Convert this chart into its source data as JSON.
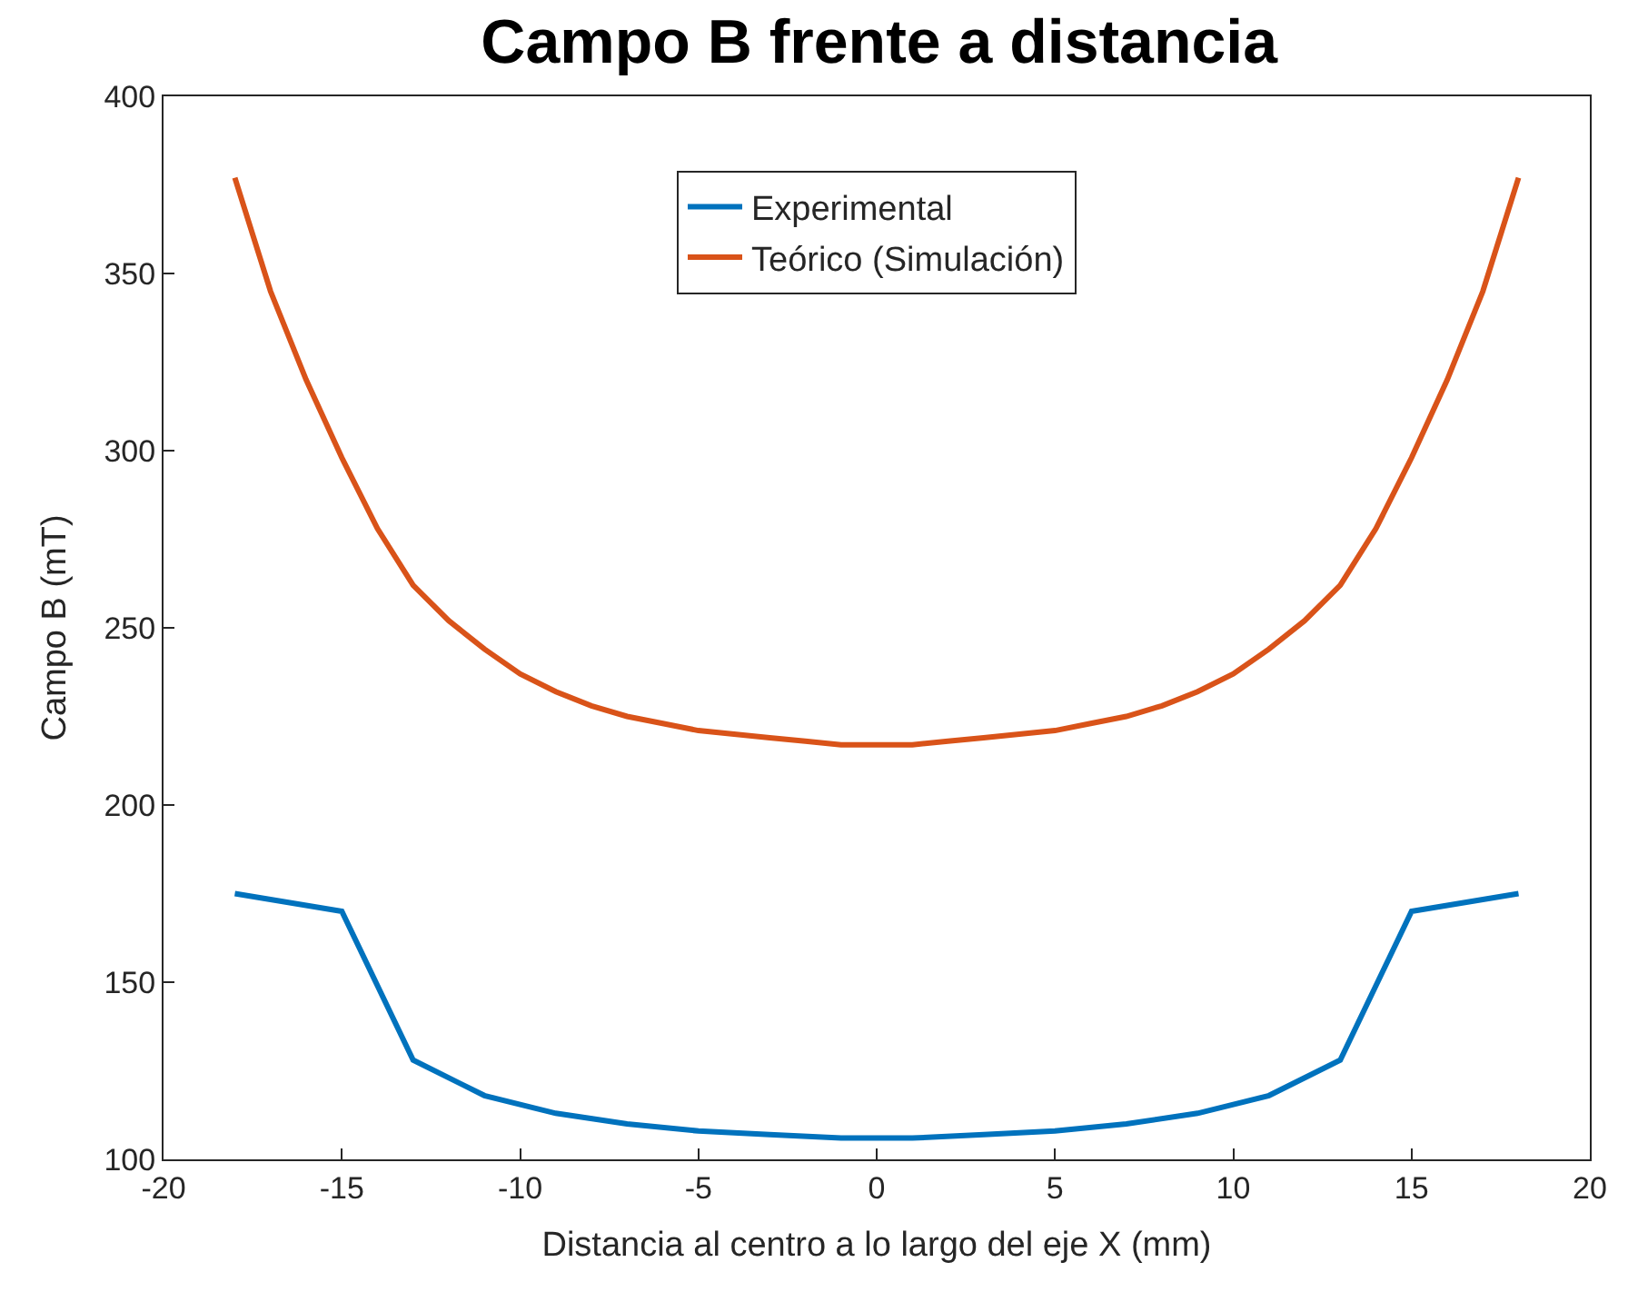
{
  "chart_data": {
    "type": "line",
    "title": "Campo B frente a distancia",
    "xlabel": "Distancia al centro a lo largo del eje X (mm)",
    "ylabel": "Campo B (mT)",
    "xlim": [
      -20,
      20
    ],
    "xticks": [
      -20,
      -15,
      -10,
      -5,
      0,
      5,
      10,
      15,
      20
    ],
    "ylim": [
      100,
      400
    ],
    "yticks": [
      100,
      150,
      200,
      250,
      300,
      350,
      400
    ],
    "legend": "top",
    "marker": "none",
    "line_style": "solid",
    "series": [
      {
        "name": "Experimental",
        "color": "#0072bd",
        "x": [
          -18,
          -15,
          -13,
          -11,
          -9,
          -7,
          -5,
          -3,
          -1,
          1,
          3,
          5,
          7,
          9,
          11,
          13,
          15,
          18
        ],
        "values": [
          175,
          170,
          128,
          118,
          113,
          110,
          108,
          107,
          106,
          106,
          107,
          108,
          110,
          113,
          118,
          128,
          170,
          175
        ]
      },
      {
        "name": "Teórico (Simulación)",
        "color": "#d95319",
        "x": [
          -18,
          -17,
          -16,
          -15,
          -14,
          -13,
          -12,
          -11,
          -10,
          -9,
          -8,
          -7,
          -6,
          -5,
          -4,
          -3,
          -2,
          -1,
          0,
          1,
          2,
          3,
          4,
          5,
          6,
          7,
          8,
          9,
          10,
          11,
          12,
          13,
          14,
          15,
          16,
          17,
          18
        ],
        "values": [
          377,
          345,
          320,
          298,
          278,
          262,
          252,
          244,
          237,
          232,
          228,
          225,
          223,
          221,
          220,
          219,
          218,
          217,
          217,
          217,
          218,
          219,
          220,
          221,
          223,
          225,
          228,
          232,
          237,
          244,
          252,
          262,
          278,
          298,
          320,
          345,
          377
        ]
      }
    ]
  }
}
